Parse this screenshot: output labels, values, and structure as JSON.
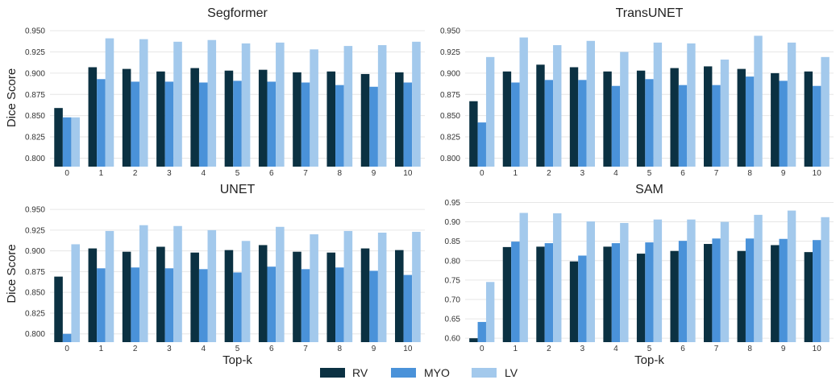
{
  "colors": {
    "RV": "#0b3142",
    "MYO": "#4a92d9",
    "LV": "#a3c9ec",
    "grid": "#e6e6e6"
  },
  "legend": {
    "position": "bottom-center",
    "items": [
      "RV",
      "MYO",
      "LV"
    ]
  },
  "chart_data": [
    {
      "type": "bar",
      "title": "Segformer",
      "xlabel": "",
      "ylabel": "Dice Score",
      "categories": [
        "0",
        "1",
        "2",
        "3",
        "4",
        "5",
        "6",
        "7",
        "8",
        "9",
        "10"
      ],
      "ylim": [
        0.79,
        0.952
      ],
      "yticks": [
        "0.800",
        "0.825",
        "0.850",
        "0.875",
        "0.900",
        "0.925",
        "0.950"
      ],
      "grid": true,
      "series": [
        {
          "name": "RV",
          "values": [
            0.859,
            0.907,
            0.905,
            0.902,
            0.906,
            0.903,
            0.904,
            0.901,
            0.902,
            0.899,
            0.901
          ]
        },
        {
          "name": "MYO",
          "values": [
            0.848,
            0.893,
            0.89,
            0.89,
            0.889,
            0.891,
            0.89,
            0.889,
            0.886,
            0.884,
            0.889
          ]
        },
        {
          "name": "LV",
          "values": [
            0.848,
            0.941,
            0.94,
            0.937,
            0.939,
            0.935,
            0.936,
            0.928,
            0.932,
            0.933,
            0.937
          ]
        }
      ]
    },
    {
      "type": "bar",
      "title": "TransUNET",
      "xlabel": "",
      "ylabel": "",
      "categories": [
        "0",
        "1",
        "2",
        "3",
        "4",
        "5",
        "6",
        "7",
        "8",
        "9",
        "10"
      ],
      "ylim": [
        0.79,
        0.952
      ],
      "yticks": [
        "0.800",
        "0.825",
        "0.850",
        "0.875",
        "0.900",
        "0.925",
        "0.950"
      ],
      "grid": true,
      "series": [
        {
          "name": "RV",
          "values": [
            0.867,
            0.902,
            0.91,
            0.907,
            0.902,
            0.903,
            0.906,
            0.908,
            0.905,
            0.9,
            0.902
          ]
        },
        {
          "name": "MYO",
          "values": [
            0.842,
            0.889,
            0.892,
            0.892,
            0.885,
            0.893,
            0.886,
            0.886,
            0.896,
            0.891,
            0.885
          ]
        },
        {
          "name": "LV",
          "values": [
            0.919,
            0.942,
            0.933,
            0.938,
            0.925,
            0.936,
            0.935,
            0.916,
            0.944,
            0.936,
            0.919
          ]
        }
      ]
    },
    {
      "type": "bar",
      "title": "UNET",
      "xlabel": "Top-k",
      "ylabel": "Dice Score",
      "categories": [
        "0",
        "1",
        "2",
        "3",
        "4",
        "5",
        "6",
        "7",
        "8",
        "9",
        "10"
      ],
      "ylim": [
        0.79,
        0.955
      ],
      "yticks": [
        "0.800",
        "0.825",
        "0.850",
        "0.875",
        "0.900",
        "0.925",
        "0.950"
      ],
      "grid": true,
      "series": [
        {
          "name": "RV",
          "values": [
            0.869,
            0.903,
            0.899,
            0.905,
            0.898,
            0.901,
            0.907,
            0.899,
            0.898,
            0.903,
            0.901
          ]
        },
        {
          "name": "MYO",
          "values": [
            0.8,
            0.879,
            0.88,
            0.879,
            0.878,
            0.874,
            0.881,
            0.878,
            0.88,
            0.876,
            0.871
          ]
        },
        {
          "name": "LV",
          "values": [
            0.908,
            0.924,
            0.931,
            0.93,
            0.925,
            0.912,
            0.929,
            0.92,
            0.924,
            0.922,
            0.923
          ]
        }
      ]
    },
    {
      "type": "bar",
      "title": "SAM",
      "xlabel": "Top-k",
      "ylabel": "",
      "categories": [
        "0",
        "1",
        "2",
        "3",
        "4",
        "5",
        "6",
        "7",
        "8",
        "9",
        "10"
      ],
      "ylim": [
        0.59,
        0.953
      ],
      "yticks": [
        "0.60",
        "0.65",
        "0.70",
        "0.75",
        "0.80",
        "0.85",
        "0.90",
        "0.95"
      ],
      "grid": true,
      "series": [
        {
          "name": "RV",
          "values": [
            0.6,
            0.835,
            0.836,
            0.798,
            0.836,
            0.818,
            0.825,
            0.843,
            0.825,
            0.84,
            0.822
          ]
        },
        {
          "name": "MYO",
          "values": [
            0.642,
            0.849,
            0.845,
            0.813,
            0.845,
            0.847,
            0.851,
            0.857,
            0.857,
            0.856,
            0.853
          ]
        },
        {
          "name": "LV",
          "values": [
            0.745,
            0.923,
            0.922,
            0.901,
            0.897,
            0.906,
            0.906,
            0.9,
            0.918,
            0.929,
            0.912
          ]
        }
      ]
    }
  ]
}
